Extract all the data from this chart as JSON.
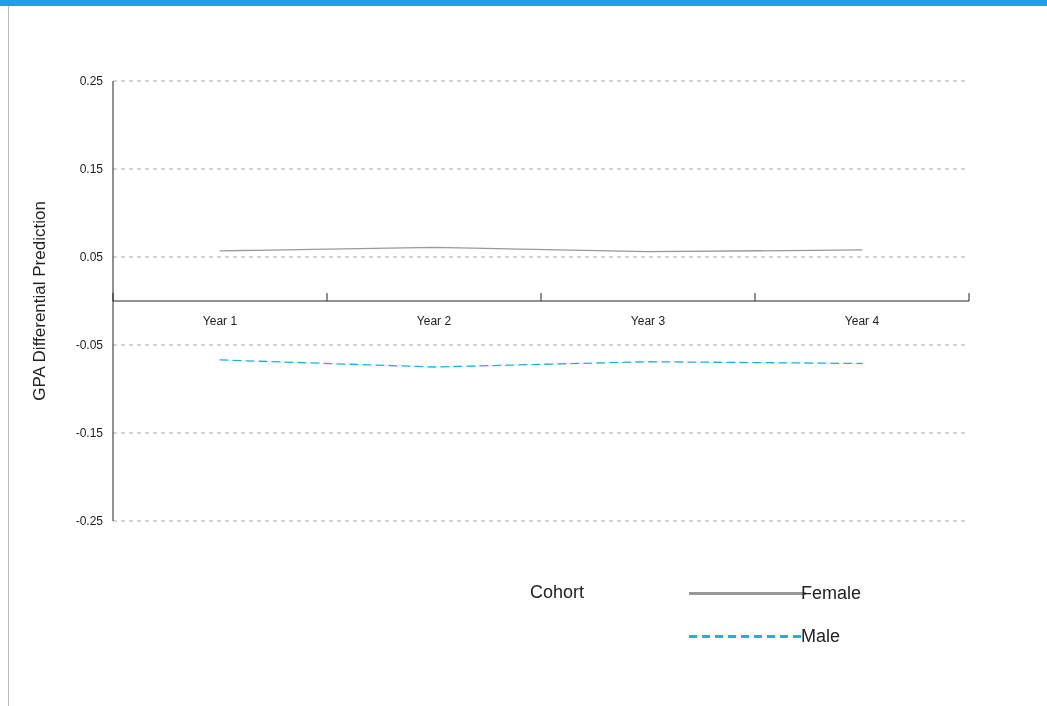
{
  "chart_data": {
    "type": "line",
    "ylabel": "GPA Differential Prediction",
    "categories": [
      "Year 1",
      "Year 2",
      "Year 3",
      "Year 4"
    ],
    "series": [
      {
        "name": "Female",
        "color": "#999999",
        "line_style": "solid",
        "values": [
          0.057,
          0.061,
          0.056,
          0.058
        ]
      },
      {
        "name": "Male",
        "color": "#1ab0e8",
        "line_style": "dashed",
        "values": [
          -0.067,
          -0.075,
          -0.069,
          -0.071
        ]
      }
    ],
    "ylim": [
      -0.25,
      0.25
    ],
    "yticks": [
      -0.25,
      -0.15,
      -0.05,
      0.05,
      0.15,
      0.25
    ],
    "grid": "y",
    "legend": "bottom",
    "legend_title": "Cohort",
    "marker": "none"
  }
}
